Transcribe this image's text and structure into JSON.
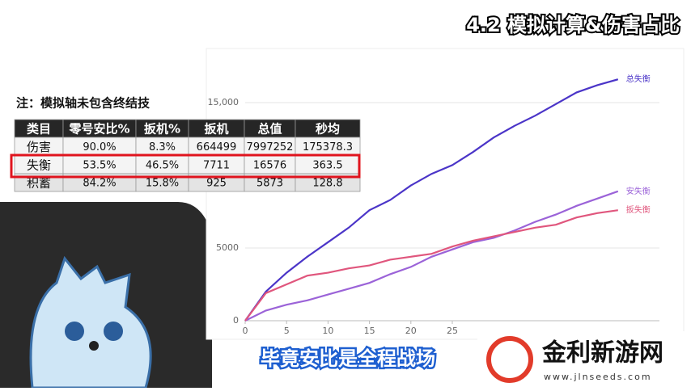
{
  "header": {
    "title": "4.2 模拟计算&伤害占比"
  },
  "note": "注：模拟轴未包含终结技",
  "table": {
    "columns": [
      "类目",
      "零号安比%",
      "扳机%",
      "扳机",
      "总值",
      "秒均"
    ],
    "rows": [
      [
        "伤害",
        "90.0%",
        "8.3%",
        "664499",
        "7997252",
        "175378.3"
      ],
      [
        "失衡",
        "53.5%",
        "46.5%",
        "7711",
        "16576",
        "363.5"
      ],
      [
        "积蓄",
        "84.2%",
        "15.8%",
        "925",
        "5873",
        "128.8"
      ]
    ]
  },
  "chart_data": {
    "type": "line",
    "x": [
      0,
      2.5,
      5,
      7.5,
      10,
      12.5,
      15,
      17.5,
      20,
      22.5,
      25,
      27.5,
      30,
      32.5,
      35,
      37.5,
      40,
      42.5,
      45
    ],
    "series": [
      {
        "name": "总失衡",
        "color": "#4b35c8",
        "values": [
          0,
          2000,
          3300,
          4400,
          5400,
          6400,
          7600,
          8300,
          9300,
          10100,
          10700,
          11600,
          12600,
          13400,
          14100,
          14900,
          15700,
          16200,
          16600
        ]
      },
      {
        "name": "安失衡",
        "color": "#9b63d8",
        "values": [
          0,
          700,
          1100,
          1400,
          1800,
          2200,
          2600,
          3200,
          3700,
          4400,
          4900,
          5400,
          5700,
          6200,
          6800,
          7300,
          7900,
          8400,
          8900
        ]
      },
      {
        "name": "扳失衡",
        "color": "#e0567d",
        "values": [
          0,
          1900,
          2500,
          3100,
          3300,
          3600,
          3800,
          4200,
          4400,
          4600,
          5100,
          5500,
          5800,
          6100,
          6400,
          6600,
          7100,
          7400,
          7600
        ]
      }
    ],
    "xlim": [
      0,
      50
    ],
    "xticks": [
      0,
      5,
      10,
      15,
      20,
      25
    ],
    "ylim": [
      0,
      17000
    ],
    "yticks": [
      0,
      5000,
      {
        "value": 15000,
        "label": "15,000"
      }
    ],
    "grid": true
  },
  "subtitle": "毕竟安比是全程战场",
  "watermark": {
    "name": "金利新游网",
    "url": "www.jlnseeds.com"
  }
}
